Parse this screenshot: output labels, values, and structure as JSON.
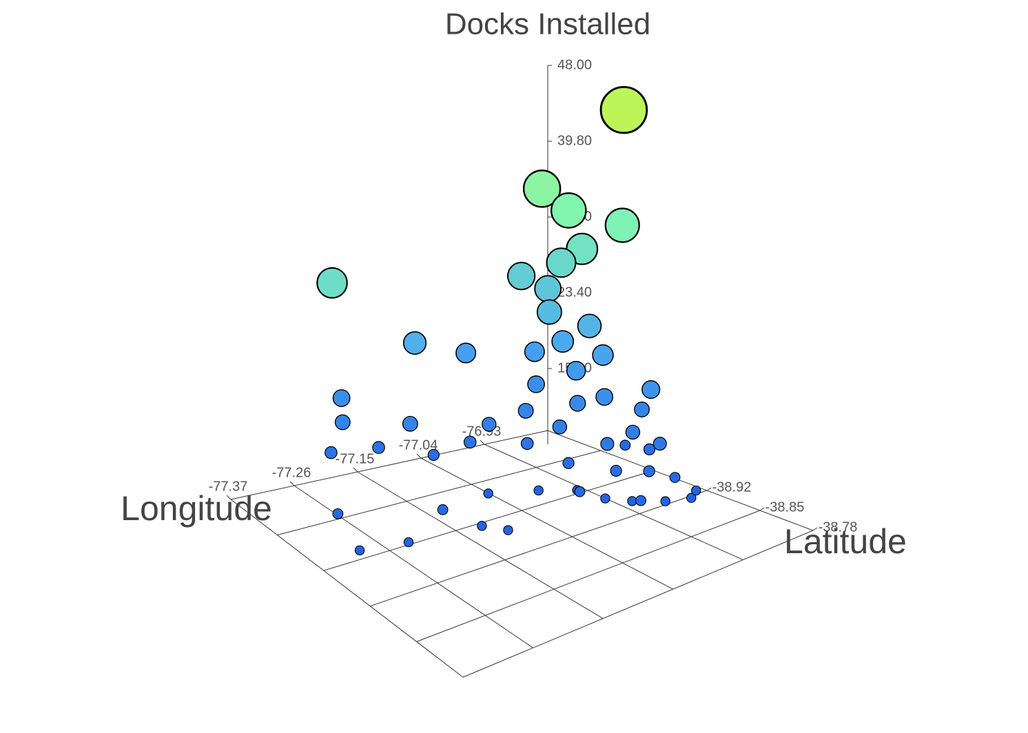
{
  "chart_data": {
    "type": "scatter3d",
    "zlabel": "Docks Installed",
    "xlabel": "Longitude",
    "ylabel": "Latitude",
    "xlim": [
      -77.37,
      -76.82
    ],
    "ylim": [
      -39.13,
      -38.78
    ],
    "zlim": [
      7,
      48
    ],
    "xticks": [
      -77.37,
      -77.26,
      -77.15,
      -77.04,
      -76.93
    ],
    "yticks": [
      -38.92,
      -38.85,
      -38.78
    ],
    "zticks": [
      {
        "value": 48,
        "label": "48.00"
      },
      {
        "value": 39.8,
        "label": "39.80"
      },
      {
        "value": 31.6,
        "label": "31.60"
      },
      {
        "value": 23.4,
        "label": "23.40"
      },
      {
        "value": 15.2,
        "label": "15.20"
      }
    ],
    "colorscale": [
      "#1f5fe0",
      "#4aa8f0",
      "#7ff5b4",
      "#c2f552"
    ],
    "x": [
      -76.87,
      -76.92,
      -76.9,
      -76.86,
      -76.89,
      -76.9,
      -76.93,
      -76.91,
      -76.92,
      -76.89,
      -76.91,
      -76.88,
      -76.92,
      -76.9,
      -76.85,
      -76.93,
      -76.89,
      -76.91,
      -77.23,
      -77.1,
      -77.0,
      -77.19,
      -77.2,
      -77.12,
      -77.01,
      -76.96,
      -76.94,
      -76.91,
      -76.88,
      -76.86,
      -76.84,
      -77.22,
      -77.15,
      -77.08,
      -77.03,
      -76.97,
      -76.95,
      -76.92,
      -76.89,
      -76.86,
      -76.84,
      -77.29,
      -77.31,
      -77.16,
      -77.13,
      -77.06,
      -77.0,
      -76.96,
      -76.95,
      -76.93,
      -76.9,
      -76.87,
      -76.85,
      -76.98,
      -77.24,
      -77.11,
      -76.83,
      -76.94
    ],
    "y": [
      -38.99,
      -39.06,
      -39.04,
      -39.0,
      -39.03,
      -39.05,
      -39.08,
      -39.06,
      -39.05,
      -39.02,
      -39.04,
      -39.01,
      -39.07,
      -39.03,
      -38.97,
      -39.06,
      -39.0,
      -39.02,
      -39.1,
      -39.09,
      -39.1,
      -39.12,
      -39.11,
      -39.08,
      -39.06,
      -39.05,
      -39.02,
      -38.98,
      -38.97,
      -38.95,
      -38.99,
      -39.11,
      -39.1,
      -39.08,
      -39.07,
      -39.04,
      -39.0,
      -38.96,
      -38.94,
      -38.93,
      -38.98,
      -39.04,
      -38.99,
      -39.0,
      -38.97,
      -39.02,
      -39.0,
      -38.98,
      -38.95,
      -38.93,
      -38.91,
      -38.9,
      -38.91,
      -38.96,
      -38.98,
      -38.95,
      -39.02,
      -38.91
    ],
    "z": [
      47,
      37,
      35,
      34,
      31,
      29,
      27,
      26,
      24,
      23,
      21,
      20,
      19,
      18,
      17,
      16,
      16,
      15,
      30,
      22,
      19,
      16,
      14,
      14,
      13,
      14,
      13,
      12,
      13,
      12,
      14,
      11,
      11,
      10,
      11,
      11,
      10,
      10,
      10,
      9,
      10,
      9,
      8,
      9,
      8,
      8,
      8,
      8,
      8,
      8,
      8,
      8,
      8,
      9,
      8,
      8,
      9,
      9
    ]
  }
}
